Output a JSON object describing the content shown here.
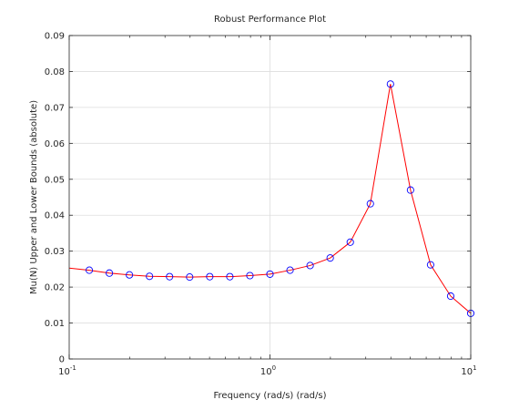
{
  "chart_data": {
    "type": "line",
    "title": "Robust Performance Plot",
    "xlabel": "Frequency (rad/s) (rad/s)",
    "ylabel": "Mu(N) Upper and Lower Bounds (absolute)",
    "xscale": "log",
    "xlim": [
      0.1,
      10
    ],
    "ylim": [
      0,
      0.09
    ],
    "grid": "major lines at 1 and each y tick",
    "x_ticks": [
      {
        "base": "10",
        "exp": "-1",
        "value": 0.1
      },
      {
        "base": "10",
        "exp": "0",
        "value": 1
      },
      {
        "base": "10",
        "exp": "1",
        "value": 10
      }
    ],
    "y_ticks": [
      "0",
      "0.01",
      "0.02",
      "0.03",
      "0.04",
      "0.05",
      "0.06",
      "0.07",
      "0.08",
      "0.09"
    ],
    "y_tick_values": [
      0,
      0.01,
      0.02,
      0.03,
      0.04,
      0.05,
      0.06,
      0.07,
      0.08,
      0.09
    ],
    "series": [
      {
        "role": "upper-bound",
        "color": "#ff0000",
        "style": "line",
        "x": [
          0.1,
          0.1259,
          0.1585,
          0.1995,
          0.2512,
          0.3162,
          0.3981,
          0.5012,
          0.631,
          0.7943,
          1.0,
          1.2589,
          1.5849,
          1.9953,
          2.5119,
          3.1623,
          3.9811,
          5.0119,
          6.3096,
          7.9433,
          10.0
        ],
        "values": [
          0.0253,
          0.0247,
          0.0239,
          0.0234,
          0.023,
          0.0229,
          0.0228,
          0.0229,
          0.0229,
          0.0232,
          0.0236,
          0.0247,
          0.026,
          0.0281,
          0.0325,
          0.0432,
          0.0765,
          0.047,
          0.0262,
          0.0175,
          0.0127
        ]
      },
      {
        "role": "lower-bound",
        "color": "#0000ff",
        "style": "markers",
        "marker": "circle",
        "x": [
          0.1259,
          0.1585,
          0.1995,
          0.2512,
          0.3162,
          0.3981,
          0.5012,
          0.631,
          0.7943,
          1.0,
          1.2589,
          1.5849,
          1.9953,
          2.5119,
          3.1623,
          3.9811,
          5.0119,
          6.3096,
          7.9433,
          10.0
        ],
        "values": [
          0.0247,
          0.0239,
          0.0234,
          0.023,
          0.0229,
          0.0228,
          0.0229,
          0.0229,
          0.0232,
          0.0236,
          0.0247,
          0.026,
          0.0281,
          0.0325,
          0.0432,
          0.0765,
          0.047,
          0.0262,
          0.0175,
          0.0127
        ]
      }
    ]
  }
}
